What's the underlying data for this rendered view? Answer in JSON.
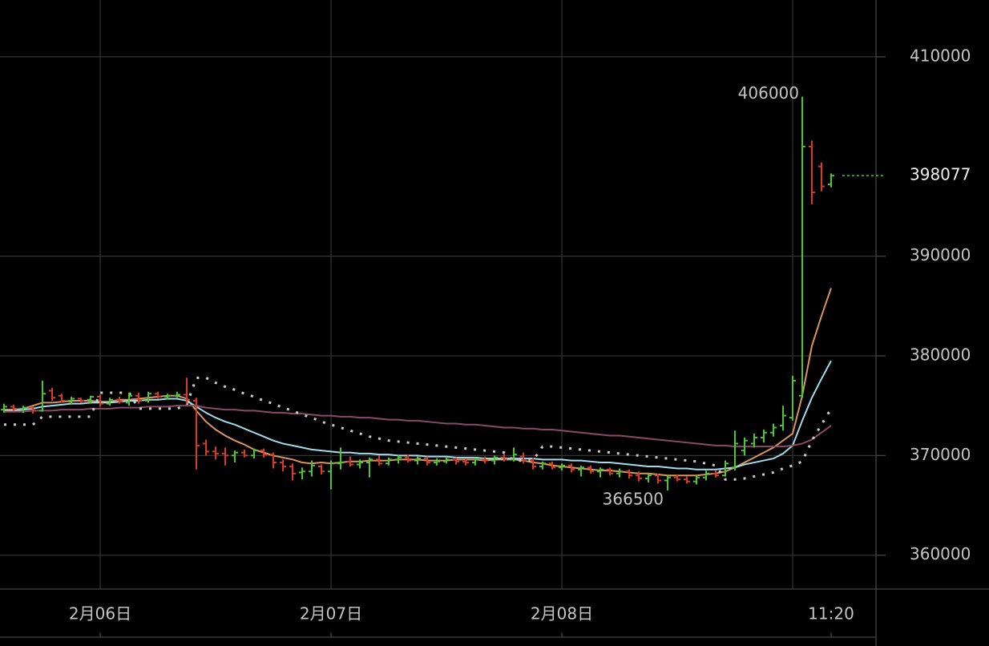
{
  "chart_data": {
    "type": "ohlc",
    "background": "#000000",
    "up_color": "#4cc534",
    "down_color": "#d83a2a",
    "ylim": [
      356600,
      415700
    ],
    "yticks": [
      360000,
      370000,
      380000,
      390000,
      410000
    ],
    "grid": true,
    "categories": [
      null,
      null,
      null,
      null,
      null,
      null,
      null,
      null,
      null,
      null,
      "2月06日",
      null,
      null,
      null,
      null,
      null,
      null,
      null,
      null,
      null,
      null,
      null,
      null,
      null,
      null,
      null,
      null,
      null,
      null,
      null,
      null,
      null,
      null,
      null,
      "2月07日",
      null,
      null,
      null,
      null,
      null,
      null,
      null,
      null,
      null,
      null,
      null,
      null,
      null,
      null,
      null,
      null,
      null,
      null,
      null,
      null,
      null,
      null,
      null,
      "2月08日",
      null,
      null,
      null,
      null,
      null,
      null,
      null,
      null,
      null,
      null,
      null,
      null,
      null,
      null,
      null,
      null,
      null,
      null,
      null,
      null,
      null,
      null,
      null,
      null,
      null,
      null,
      null,
      "11:20"
    ],
    "ohlc": [
      [
        374600,
        375200,
        374300,
        374900
      ],
      [
        374900,
        375100,
        374500,
        374700
      ],
      [
        374700,
        375000,
        374300,
        374800
      ],
      [
        374800,
        374900,
        374200,
        374500
      ],
      [
        374500,
        377500,
        374400,
        376200
      ],
      [
        376500,
        376800,
        375500,
        375800
      ],
      [
        376000,
        376200,
        375300,
        375500
      ],
      [
        375400,
        375900,
        375100,
        375700
      ],
      [
        375700,
        375800,
        375300,
        375500
      ],
      [
        375600,
        376000,
        375200,
        375900
      ],
      [
        375900,
        376100,
        374900,
        375200
      ],
      [
        375200,
        375800,
        375000,
        375600
      ],
      [
        375600,
        375900,
        375200,
        375400
      ],
      [
        375300,
        376300,
        375000,
        376000
      ],
      [
        376000,
        376300,
        375200,
        375500
      ],
      [
        375500,
        376400,
        375300,
        376200
      ],
      [
        376200,
        376400,
        375700,
        375900
      ],
      [
        375900,
        376200,
        375600,
        376000
      ],
      [
        376000,
        376400,
        375800,
        376100
      ],
      [
        376100,
        377800,
        375200,
        375600
      ],
      [
        375500,
        375800,
        368600,
        371000
      ],
      [
        371200,
        371600,
        370000,
        370400
      ],
      [
        370400,
        370900,
        369600,
        370200
      ],
      [
        370200,
        370800,
        369000,
        370000
      ],
      [
        370000,
        370500,
        369300,
        370300
      ],
      [
        370300,
        370600,
        369800,
        370000
      ],
      [
        370000,
        370700,
        369700,
        370500
      ],
      [
        370500,
        370700,
        369800,
        370100
      ],
      [
        370100,
        370300,
        368700,
        369300
      ],
      [
        369300,
        369600,
        368400,
        368900
      ],
      [
        368900,
        369200,
        367500,
        368200
      ],
      [
        368300,
        368800,
        367600,
        368400
      ],
      [
        368400,
        369500,
        367900,
        369000
      ],
      [
        368900,
        369100,
        368100,
        368400
      ],
      [
        368400,
        369500,
        366600,
        369200
      ],
      [
        369200,
        370800,
        368600,
        369300
      ],
      [
        369400,
        369900,
        368900,
        369100
      ],
      [
        369100,
        369600,
        368700,
        369300
      ],
      [
        369300,
        369800,
        367800,
        369600
      ],
      [
        369600,
        370000,
        369000,
        369200
      ],
      [
        369200,
        369800,
        369000,
        369600
      ],
      [
        369600,
        370000,
        369200,
        369800
      ],
      [
        369800,
        370100,
        369300,
        369500
      ],
      [
        369500,
        369900,
        369100,
        369700
      ],
      [
        369700,
        369900,
        369000,
        369300
      ],
      [
        369300,
        369700,
        369000,
        369400
      ],
      [
        369400,
        369800,
        369200,
        369600
      ],
      [
        369600,
        369800,
        369100,
        369400
      ],
      [
        369400,
        369700,
        369000,
        369300
      ],
      [
        369300,
        369800,
        369000,
        369600
      ],
      [
        369600,
        369900,
        369200,
        369500
      ],
      [
        369500,
        370000,
        369100,
        369800
      ],
      [
        369800,
        370200,
        369400,
        369600
      ],
      [
        369600,
        370800,
        369400,
        370100
      ],
      [
        369900,
        370300,
        369200,
        369500
      ],
      [
        369500,
        369800,
        368600,
        368900
      ],
      [
        368900,
        369400,
        368600,
        369200
      ],
      [
        369200,
        369400,
        368600,
        368800
      ],
      [
        368800,
        369200,
        368500,
        369000
      ],
      [
        369000,
        369200,
        368300,
        368600
      ],
      [
        368600,
        369000,
        367900,
        368800
      ],
      [
        368800,
        369000,
        368200,
        368400
      ],
      [
        368400,
        368800,
        367800,
        368600
      ],
      [
        368600,
        368800,
        368000,
        368200
      ],
      [
        368200,
        368700,
        367800,
        368400
      ],
      [
        368400,
        368600,
        367700,
        368000
      ],
      [
        368000,
        368400,
        367400,
        367700
      ],
      [
        367700,
        368200,
        367300,
        368000
      ],
      [
        368000,
        368200,
        367200,
        367500
      ],
      [
        367500,
        368000,
        366500,
        367800
      ],
      [
        367800,
        368100,
        367400,
        367600
      ],
      [
        367600,
        367900,
        367200,
        367400
      ],
      [
        367400,
        368000,
        367100,
        367800
      ],
      [
        367800,
        368500,
        367500,
        368200
      ],
      [
        368200,
        368500,
        367800,
        368000
      ],
      [
        368000,
        369500,
        367900,
        369200
      ],
      [
        368800,
        372500,
        368500,
        371200
      ],
      [
        370500,
        371800,
        370000,
        371500
      ],
      [
        371200,
        372200,
        370800,
        371800
      ],
      [
        371800,
        372600,
        371300,
        372300
      ],
      [
        372300,
        373200,
        371900,
        372800
      ],
      [
        373000,
        375000,
        372500,
        374000
      ],
      [
        373800,
        378000,
        373500,
        377500
      ],
      [
        376000,
        406000,
        375800,
        401000
      ],
      [
        401000,
        401600,
        395200,
        396400
      ],
      [
        399000,
        399400,
        396500,
        397000
      ],
      [
        397200,
        398300,
        396900,
        398077
      ]
    ],
    "lines": [
      {
        "color": "#d9955a",
        "values": [
          374600,
          374600,
          374700,
          375000,
          375300,
          375300,
          375400,
          375500,
          375500,
          375500,
          375400,
          375400,
          375600,
          375600,
          375700,
          375800,
          375900,
          376000,
          376000,
          375700,
          374500,
          373400,
          372600,
          372000,
          371500,
          371100,
          370600,
          370300,
          370000,
          369800,
          369600,
          369300,
          369200,
          369300,
          369200,
          369300,
          369400,
          369400,
          369500,
          369500,
          369500,
          369600,
          369600,
          369600,
          369500,
          369500,
          369500,
          369600,
          369600,
          369600,
          369500,
          369600,
          369600,
          369600,
          369500,
          369300,
          369200,
          369000,
          368900,
          368800,
          368700,
          368600,
          368500,
          368500,
          368400,
          368300,
          368200,
          368200,
          368100,
          368000,
          368000,
          368000,
          368000,
          368100,
          368200,
          368400,
          368800,
          369300,
          369800,
          370300,
          370800,
          371500,
          372200,
          376000,
          381000,
          384000,
          386800
        ]
      },
      {
        "color": "#9fdcec",
        "values": [
          374500,
          374500,
          374600,
          374700,
          374900,
          375000,
          375100,
          375200,
          375200,
          375300,
          375300,
          375300,
          375400,
          375500,
          375500,
          375600,
          375600,
          375700,
          375700,
          375500,
          374900,
          374300,
          373800,
          373400,
          373100,
          372700,
          372300,
          371900,
          371500,
          371200,
          371000,
          370800,
          370600,
          370500,
          370400,
          370300,
          370300,
          370200,
          370200,
          370100,
          370100,
          370000,
          370000,
          370000,
          369900,
          369900,
          369900,
          369800,
          369800,
          369800,
          369700,
          369700,
          369700,
          369700,
          369700,
          369700,
          369600,
          369600,
          369600,
          369500,
          369500,
          369400,
          369300,
          369300,
          369200,
          369100,
          369000,
          368900,
          368900,
          368800,
          368700,
          368700,
          368600,
          368600,
          368600,
          368700,
          368800,
          369100,
          369300,
          369500,
          369700,
          370200,
          371000,
          373500,
          375800,
          377700,
          379500
        ]
      },
      {
        "color": "#8a4a66",
        "values": [
          374400,
          374400,
          374400,
          374500,
          374500,
          374500,
          374600,
          374600,
          374600,
          374700,
          374700,
          374700,
          374800,
          374800,
          374800,
          374900,
          374900,
          374900,
          375000,
          375000,
          375000,
          374800,
          374700,
          374600,
          374600,
          374500,
          374500,
          374400,
          374300,
          374300,
          374200,
          374200,
          374100,
          374000,
          374000,
          373900,
          373900,
          373800,
          373800,
          373700,
          373600,
          373600,
          373500,
          373500,
          373400,
          373300,
          373200,
          373200,
          373100,
          373100,
          373000,
          372900,
          372800,
          372800,
          372700,
          372700,
          372600,
          372600,
          372500,
          372400,
          372300,
          372200,
          372100,
          372000,
          372000,
          371900,
          371800,
          371700,
          371600,
          371500,
          371400,
          371300,
          371200,
          371100,
          371000,
          371000,
          370900,
          370900,
          370900,
          370900,
          370900,
          370900,
          371000,
          371200,
          371600,
          372300,
          373000
        ]
      },
      {
        "color": "#cccccc",
        "style": "dotted",
        "values": [
          373100,
          373100,
          373100,
          373100,
          373900,
          373900,
          373900,
          373900,
          373900,
          373900,
          376300,
          376300,
          376300,
          376300,
          374700,
          374700,
          374700,
          374700,
          374700,
          375100,
          377800,
          377800,
          377300,
          376900,
          376600,
          376200,
          375900,
          375500,
          375200,
          374800,
          374500,
          374100,
          373800,
          373400,
          373100,
          372800,
          372500,
          372200,
          371900,
          371700,
          371500,
          371400,
          371300,
          371200,
          371100,
          371000,
          370900,
          370800,
          370700,
          370600,
          370500,
          370400,
          370300,
          369500,
          369500,
          369500,
          370900,
          370900,
          370800,
          370700,
          370600,
          370500,
          370400,
          370300,
          370200,
          370100,
          370000,
          369900,
          369800,
          369700,
          369600,
          369500,
          369400,
          369200,
          369000,
          367600,
          367600,
          367700,
          367900,
          368100,
          368300,
          368700,
          369000,
          369400,
          371500,
          373100,
          374700
        ]
      }
    ],
    "annotations": {
      "high": 406000,
      "low": 366500,
      "last": 398077
    }
  }
}
